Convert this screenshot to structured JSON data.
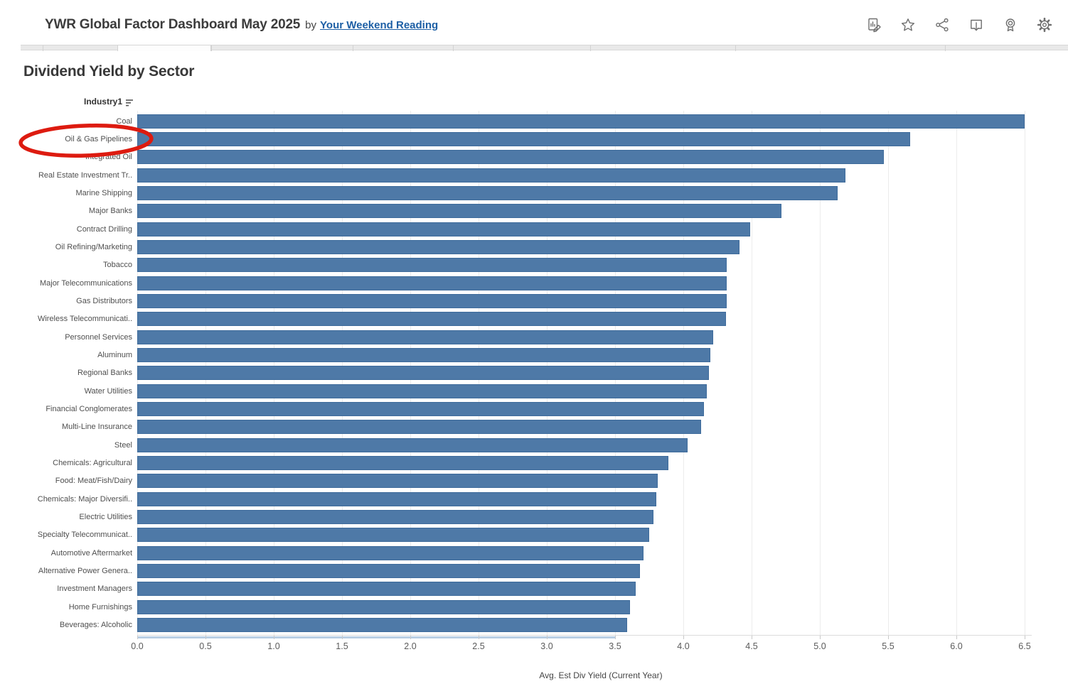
{
  "header": {
    "title": "YWR Global Factor Dashboard May 2025",
    "byline": "by",
    "author_link": "Your Weekend Reading",
    "toolbar_icons": [
      "edit-icon",
      "favorite-star-icon",
      "share-icon",
      "download-icon",
      "award-icon",
      "settings-gear-icon"
    ]
  },
  "chart": {
    "title": "Dividend Yield by Sector",
    "column_header": "Industry1"
  },
  "chart_data": {
    "type": "bar",
    "orientation": "horizontal",
    "title": "Dividend Yield by Sector",
    "ylabel": "Industry1",
    "xlabel": "Avg. Est Div Yield (Current Year)",
    "xlim": [
      0,
      6.5
    ],
    "xticks": [
      0.0,
      0.5,
      1.0,
      1.5,
      2.0,
      2.5,
      3.0,
      3.5,
      4.0,
      4.5,
      5.0,
      5.5,
      6.0,
      6.5
    ],
    "grid": true,
    "bar_color": "#4e79a7",
    "bar_border_color": "#3e6b9b",
    "categories": [
      "Coal",
      "Oil & Gas Pipelines",
      "Integrated Oil",
      "Real Estate Investment Tr..",
      "Marine Shipping",
      "Major Banks",
      "Contract Drilling",
      "Oil Refining/Marketing",
      "Tobacco",
      "Major Telecommunications",
      "Gas Distributors",
      "Wireless Telecommunicati..",
      "Personnel Services",
      "Aluminum",
      "Regional Banks",
      "Water Utilities",
      "Financial Conglomerates",
      "Multi-Line Insurance",
      "Steel",
      "Chemicals: Agricultural",
      "Food: Meat/Fish/Dairy",
      "Chemicals: Major Diversifi..",
      "Electric Utilities",
      "Specialty Telecommunicat..",
      "Automotive Aftermarket",
      "Alternative Power Genera..",
      "Investment Managers",
      "Home Furnishings",
      "Beverages: Alcoholic"
    ],
    "values": [
      6.5,
      5.66,
      5.47,
      5.19,
      5.13,
      4.72,
      4.49,
      4.41,
      4.32,
      4.32,
      4.32,
      4.31,
      4.22,
      4.2,
      4.19,
      4.17,
      4.15,
      4.13,
      4.03,
      3.89,
      3.81,
      3.8,
      3.78,
      3.75,
      3.71,
      3.68,
      3.65,
      3.61,
      3.59
    ],
    "annotation": {
      "shape": "ellipse",
      "highlighted_category": "Oil & Gas Pipelines",
      "color": "#dd1b10"
    }
  }
}
